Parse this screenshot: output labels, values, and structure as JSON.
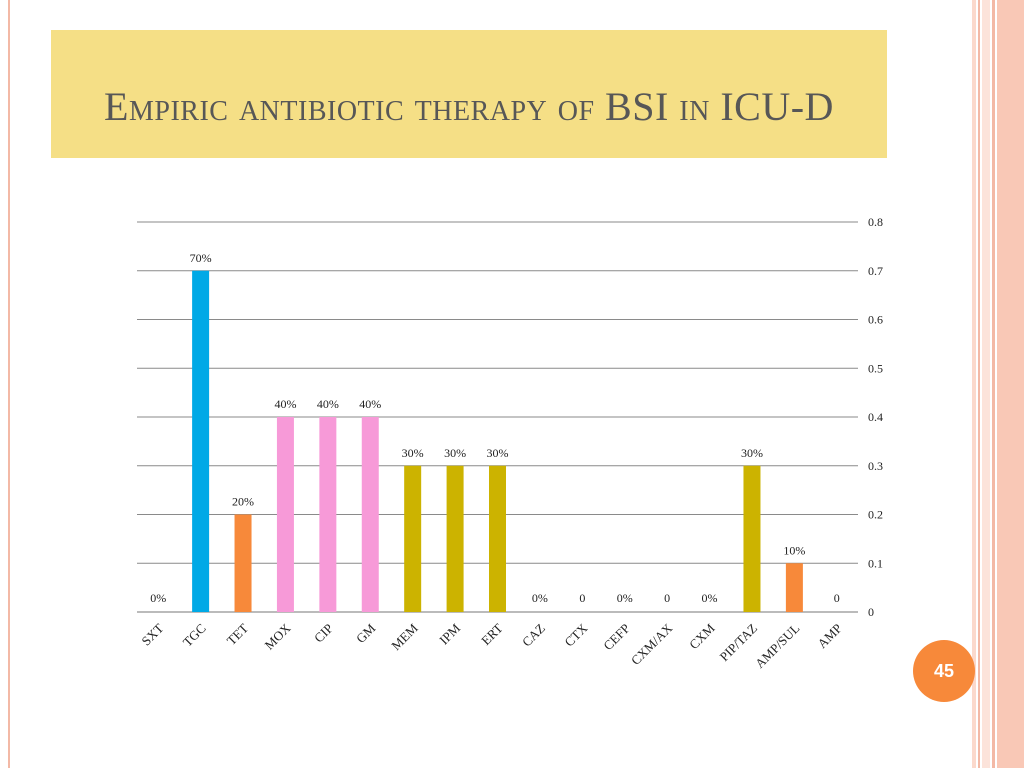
{
  "slide": {
    "title": "Empiric antibiotic therapy of BSI in ICU-D",
    "page_number": "45"
  },
  "colors": {
    "blue": "#00a9e6",
    "orange": "#f7893a",
    "pink": "#f79ad8",
    "olive": "#ccb300",
    "title_bg": "#f5df86",
    "accent": "#f3b9a6"
  },
  "chart_data": {
    "type": "bar",
    "categories": [
      "SXT",
      "TGC",
      "TET",
      "MOX",
      "CIP",
      "GM",
      "MEM",
      "IPM",
      "ERT",
      "CAZ",
      "CTX",
      "CEFP",
      "CXM/AX",
      "CXM",
      "PIP/TAZ",
      "AMP/SUL",
      "AMP"
    ],
    "values": [
      0,
      0.7,
      0.2,
      0.4,
      0.4,
      0.4,
      0.3,
      0.3,
      0.3,
      0,
      0,
      0,
      0,
      0,
      0.3,
      0.1,
      0
    ],
    "data_labels": [
      "0%",
      "70%",
      "20%",
      "40%",
      "40%",
      "40%",
      "30%",
      "30%",
      "30%",
      "0%",
      "0",
      "0%",
      "0",
      "0%",
      "30%",
      "10%",
      "0"
    ],
    "bar_colors": [
      "#00a9e6",
      "#00a9e6",
      "#f7893a",
      "#f79ad8",
      "#f79ad8",
      "#f79ad8",
      "#ccb300",
      "#ccb300",
      "#ccb300",
      "#ccb300",
      "#ccb300",
      "#ccb300",
      "#ccb300",
      "#ccb300",
      "#ccb300",
      "#f7893a",
      "#f7893a"
    ],
    "y_ticks": [
      "0",
      "0.1",
      "0.2",
      "0.3",
      "0.4",
      "0.5",
      "0.6",
      "0.7",
      "0.8"
    ],
    "ylim": [
      0,
      0.8
    ],
    "y_axis_side": "right",
    "grid": true,
    "legend": false
  }
}
